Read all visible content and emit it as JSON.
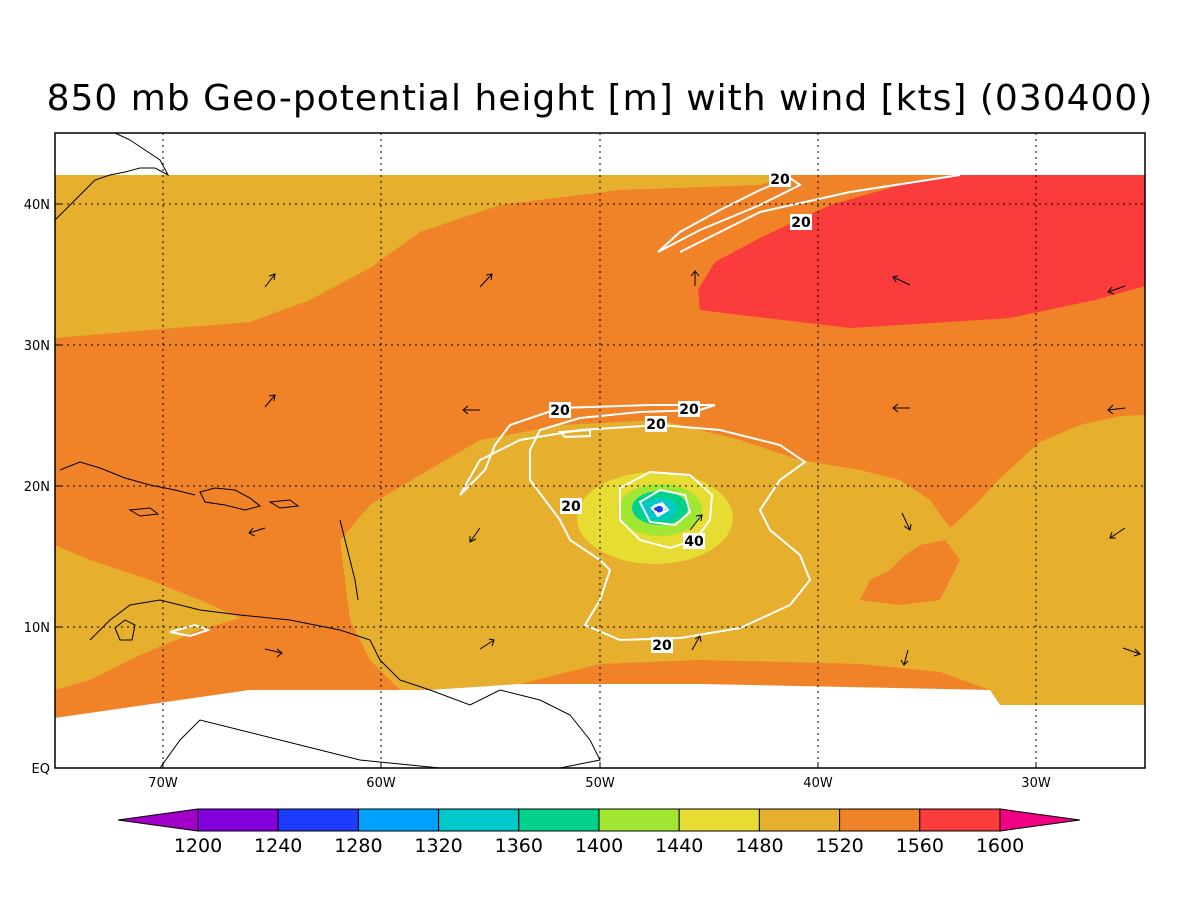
{
  "title": "850 mb Geo-potential height [m] with wind [kts] (030400)",
  "map": {
    "lon_ticks": [
      "70W",
      "60W",
      "50W",
      "40W",
      "30W"
    ],
    "lat_ticks": [
      "40N",
      "30N",
      "20N",
      "10N",
      "EQ"
    ],
    "contour_labels": [
      "20",
      "20",
      "20",
      "20",
      "20",
      "20",
      "40",
      "20"
    ],
    "grid": "dotted",
    "center_marker": "low-pressure-center"
  },
  "colorbar": {
    "levels": [
      "1200",
      "1240",
      "1280",
      "1320",
      "1360",
      "1400",
      "1440",
      "1480",
      "1520",
      "1560",
      "1600"
    ],
    "colors": [
      "#a000c8",
      "#8200dc",
      "#1e3cff",
      "#00a0ff",
      "#00c8c8",
      "#00d28c",
      "#a0e632",
      "#e6dc32",
      "#e6af2d",
      "#f08228",
      "#fa3c3c",
      "#f00082"
    ]
  }
}
